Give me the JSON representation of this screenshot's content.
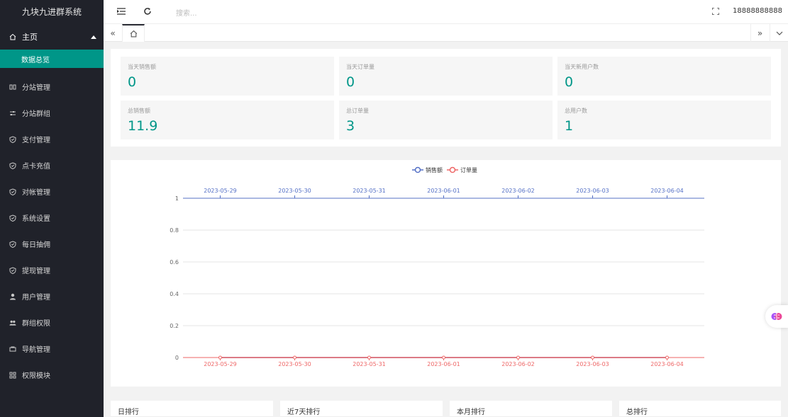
{
  "app_title": "九块九进群系统",
  "sidebar": {
    "home": {
      "label": "主页",
      "icon": "home-icon"
    },
    "home_sub": {
      "label": "数据总览"
    },
    "items": [
      {
        "label": "分站管理",
        "icon": "sub-site-icon"
      },
      {
        "label": "分站群组",
        "icon": "sliders-icon"
      },
      {
        "label": "支付管理",
        "icon": "shield-icon"
      },
      {
        "label": "点卡充值",
        "icon": "shield-icon"
      },
      {
        "label": "对帐管理",
        "icon": "shield-icon"
      },
      {
        "label": "系统设置",
        "icon": "shield-icon"
      },
      {
        "label": "每日抽佣",
        "icon": "shield-icon"
      },
      {
        "label": "提现管理",
        "icon": "shield-icon"
      },
      {
        "label": "用户管理",
        "icon": "user-icon"
      },
      {
        "label": "群组权限",
        "icon": "users-icon"
      },
      {
        "label": "导航管理",
        "icon": "nav-icon"
      },
      {
        "label": "权限模块",
        "icon": "module-icon"
      }
    ]
  },
  "header": {
    "search_placeholder": "搜索...",
    "username": "18888888888"
  },
  "stats": [
    {
      "label": "当天销售额",
      "value": "0"
    },
    {
      "label": "当天订单量",
      "value": "0"
    },
    {
      "label": "当天新用户数",
      "value": "0"
    },
    {
      "label": "总销售额",
      "value": "11.9"
    },
    {
      "label": "总订单量",
      "value": "3"
    },
    {
      "label": "总用户数",
      "value": "1"
    }
  ],
  "rankings": [
    "日排行",
    "近7天排行",
    "本月排行",
    "总排行"
  ],
  "chart_data": {
    "type": "line",
    "categories": [
      "2023-05-29",
      "2023-05-30",
      "2023-05-31",
      "2023-06-01",
      "2023-06-02",
      "2023-06-03",
      "2023-06-04"
    ],
    "series": [
      {
        "name": "销售额",
        "color": "#5470c6",
        "values": [
          0,
          0,
          0,
          0,
          0,
          0,
          0
        ],
        "axis": "top-x"
      },
      {
        "name": "订单量",
        "color": "#ee6666",
        "values": [
          0,
          0,
          0,
          0,
          0,
          0,
          0
        ],
        "axis": "bottom-x"
      }
    ],
    "y_ticks": [
      "0",
      "0.2",
      "0.4",
      "0.6",
      "0.8",
      "1"
    ],
    "ylim": [
      0,
      1
    ],
    "legend_position": "top-center",
    "grid": true
  }
}
